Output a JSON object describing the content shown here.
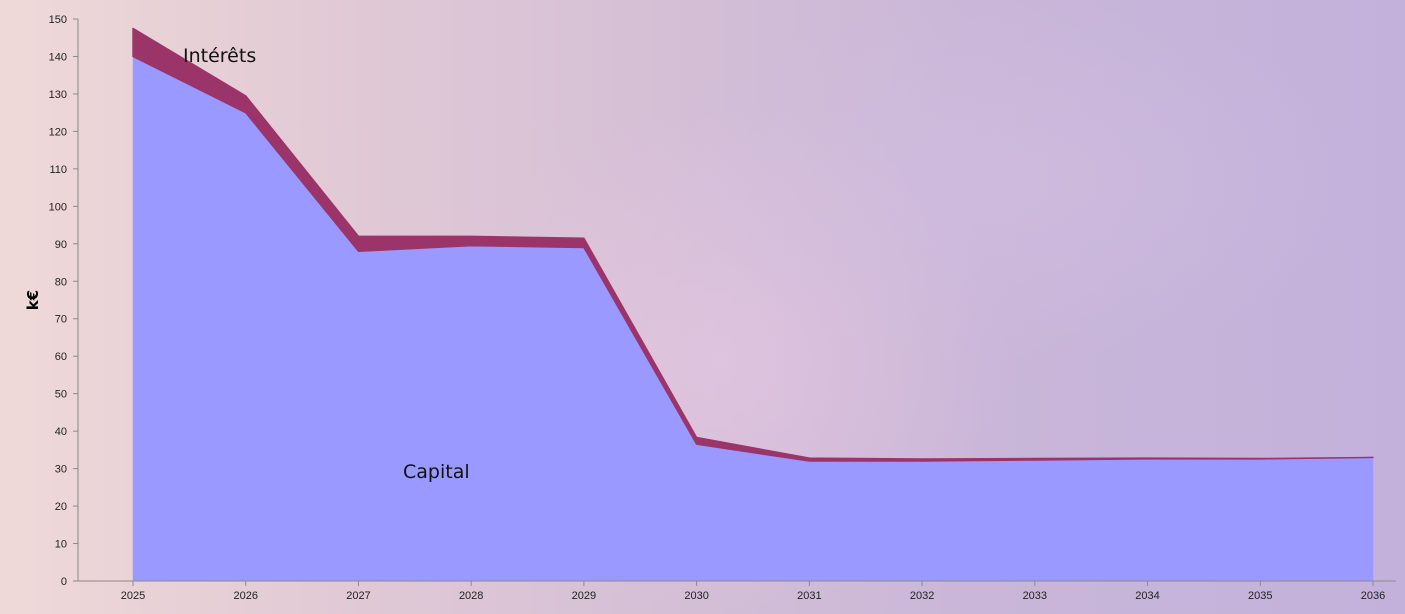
{
  "chart_data": {
    "type": "area",
    "stacked": true,
    "x": [
      "2025",
      "2026",
      "2027",
      "2028",
      "2029",
      "2030",
      "2031",
      "2032",
      "2033",
      "2034",
      "2035",
      "2036"
    ],
    "series": [
      {
        "name": "Capital",
        "color": "#9a99ff",
        "values": [
          140,
          125,
          88,
          89.5,
          89,
          36.5,
          32,
          32,
          32.3,
          32.6,
          32.6,
          33
        ]
      },
      {
        "name": "Intérêts",
        "color": "#9b3468",
        "values": [
          7.5,
          4.5,
          4,
          2.5,
          2.5,
          1.8,
          0.8,
          0.6,
          0.4,
          0.2,
          0.1,
          0
        ]
      }
    ],
    "ylabel": "k€",
    "ylim": [
      0,
      150
    ],
    "yticks": [
      0,
      10,
      20,
      30,
      40,
      50,
      60,
      70,
      80,
      90,
      100,
      110,
      120,
      130,
      140,
      150
    ],
    "grid": false,
    "legend": "none"
  }
}
